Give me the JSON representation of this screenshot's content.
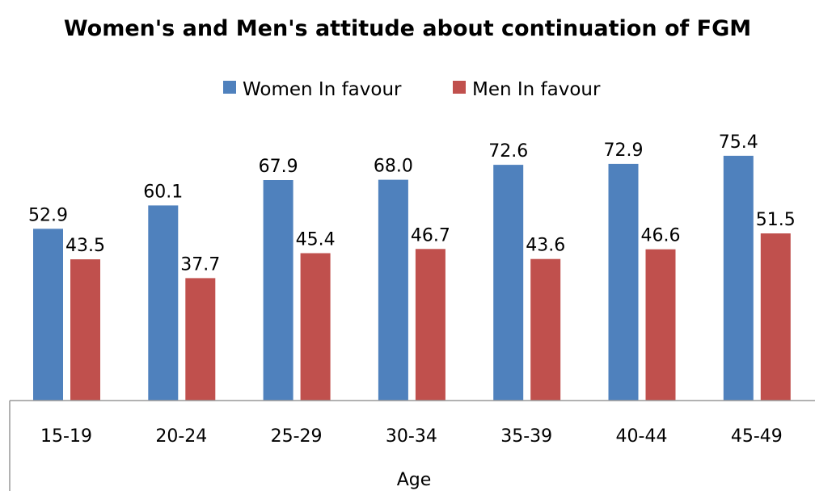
{
  "chart_data": {
    "type": "bar",
    "title": "Women's and Men's attitude about continuation of FGM",
    "xlabel": "Age",
    "ylabel": "",
    "categories": [
      "15-19",
      "20-24",
      "25-29",
      "30-34",
      "35-39",
      "40-44",
      "45-49"
    ],
    "series": [
      {
        "name": "Women In favour",
        "color": "#4F81BD",
        "values": [
          52.9,
          60.1,
          67.9,
          68.0,
          72.6,
          72.9,
          75.4
        ],
        "labels": [
          "52.9",
          "60.1",
          "67.9",
          "68.0",
          "72.6",
          "72.9",
          "75.4"
        ]
      },
      {
        "name": "Men In favour",
        "color": "#C0504D",
        "values": [
          43.5,
          37.7,
          45.4,
          46.7,
          43.6,
          46.6,
          51.5
        ],
        "labels": [
          "43.5",
          "37.7",
          "45.4",
          "46.7",
          "43.6",
          "46.6",
          "51.5"
        ]
      }
    ],
    "ylim": [
      0,
      100
    ],
    "grid": false,
    "legend_position": "top"
  }
}
